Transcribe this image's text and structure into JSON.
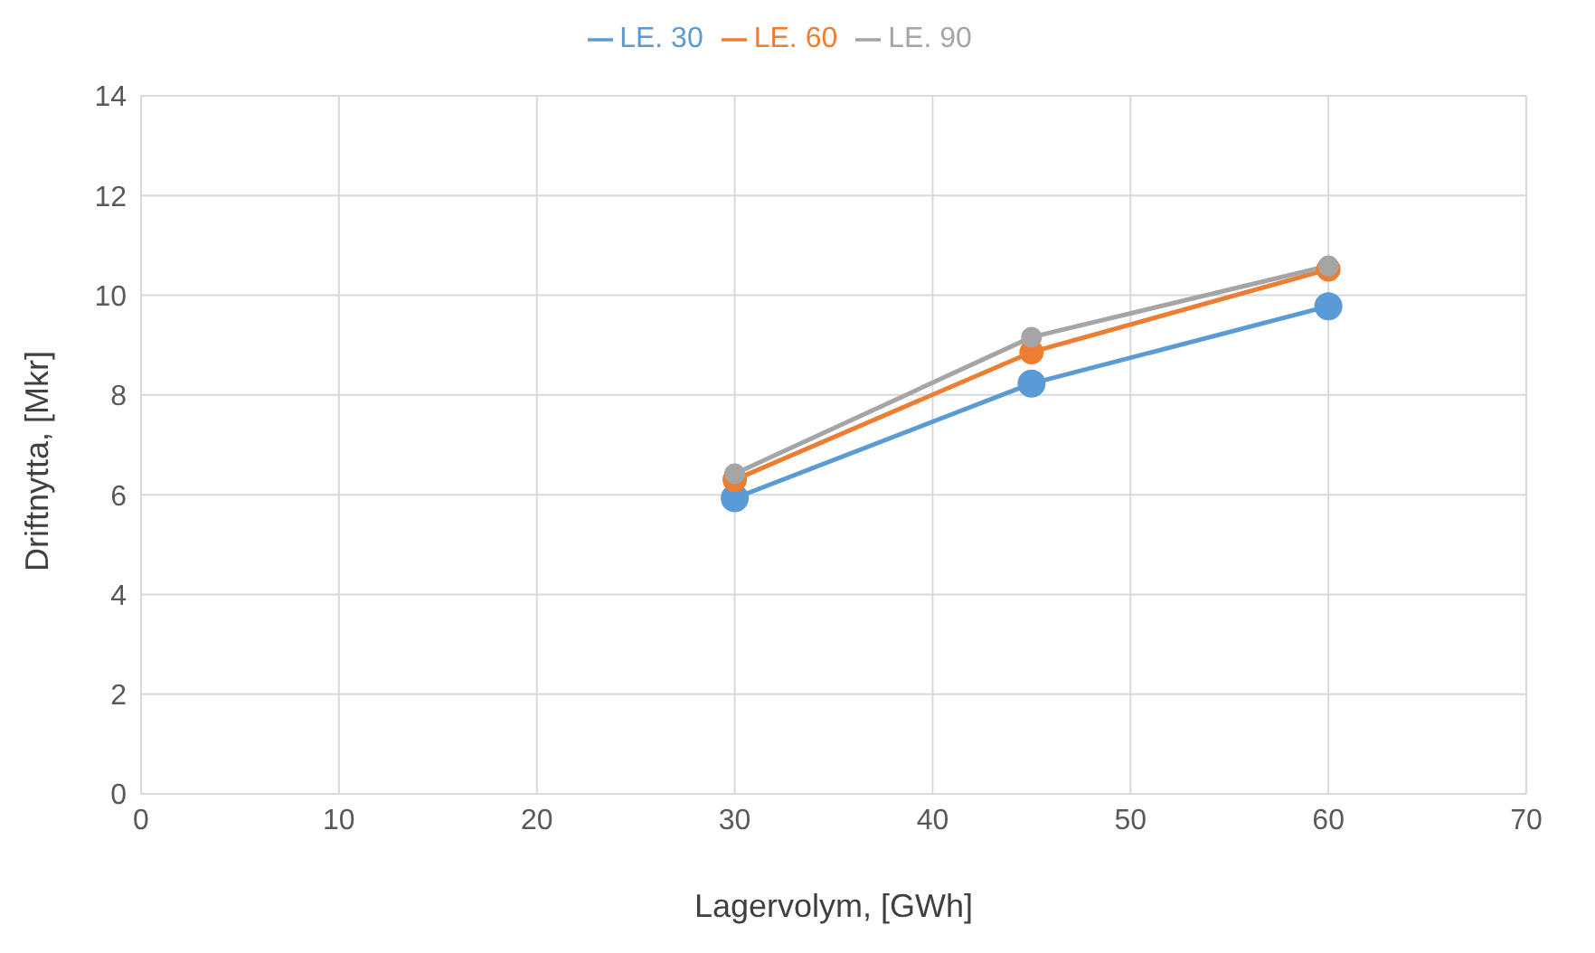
{
  "chart_data": {
    "type": "line",
    "xlabel": "Lagervolym, [GWh]",
    "ylabel": "Driftnytta, [Mkr]",
    "x": [
      30,
      45,
      60
    ],
    "series": [
      {
        "name": "LE. 30",
        "color": "#5b9bd5",
        "values": [
          5.93,
          8.23,
          9.78
        ]
      },
      {
        "name": "LE. 60",
        "color": "#ed7d31",
        "values": [
          6.3,
          8.86,
          10.52
        ]
      },
      {
        "name": "LE. 90",
        "color": "#a5a5a5",
        "values": [
          6.42,
          9.16,
          10.59
        ]
      }
    ],
    "xlim": [
      0,
      70
    ],
    "xticks": [
      0,
      10,
      20,
      30,
      40,
      50,
      60,
      70
    ],
    "ylim": [
      0,
      14
    ],
    "yticks": [
      0,
      2,
      4,
      6,
      8,
      10,
      12,
      14
    ],
    "grid": true,
    "legend": "top",
    "marker": "circle",
    "line_style": "solid"
  }
}
